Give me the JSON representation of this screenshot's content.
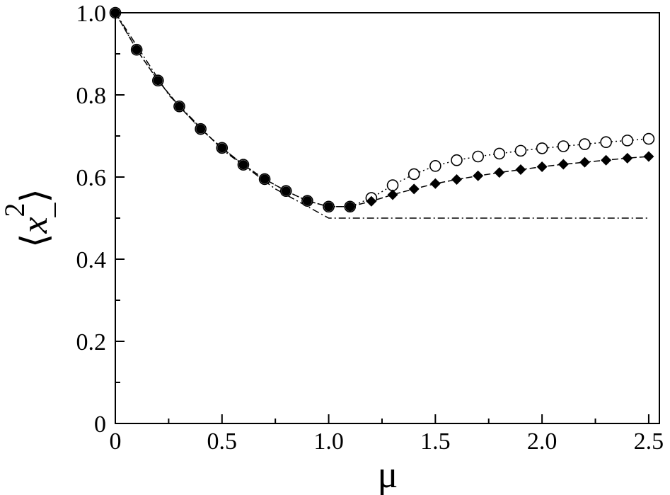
{
  "chart_data": {
    "type": "scatter",
    "xlabel": "μ",
    "ylabel": "⟨x_²⟩",
    "ylabel_parts": {
      "bracket_left": "⟨",
      "var": "x",
      "sub": "_",
      "sup": "2",
      "bracket_right": "⟩"
    },
    "xlim": [
      0,
      2.55
    ],
    "ylim": [
      0,
      1.0
    ],
    "x_ticks": [
      0,
      0.5,
      1.0,
      1.5,
      2.0,
      2.5
    ],
    "x_tick_labels": [
      "0",
      "0.5",
      "1.0",
      "1.5",
      "2.0",
      "2.5"
    ],
    "y_ticks": [
      0,
      0.2,
      0.4,
      0.6,
      0.8,
      1.0
    ],
    "y_tick_labels": [
      "0",
      "0.2",
      "0.4",
      "0.6",
      "0.8",
      "1.0"
    ],
    "grid": false,
    "legend": "none",
    "series": [
      {
        "marker": "open-circle",
        "line": "dotted",
        "x": [
          0,
          0.1,
          0.2,
          0.3,
          0.4,
          0.5,
          0.6,
          0.7,
          0.8,
          0.9,
          1.0,
          1.1,
          1.2,
          1.3,
          1.4,
          1.5,
          1.6,
          1.7,
          1.8,
          1.9,
          2.0,
          2.1,
          2.2,
          2.3,
          2.4,
          2.5
        ],
        "values": [
          1.0,
          0.91,
          0.835,
          0.772,
          0.717,
          0.671,
          0.63,
          0.595,
          0.566,
          0.542,
          0.528,
          0.528,
          0.549,
          0.58,
          0.607,
          0.627,
          0.641,
          0.65,
          0.657,
          0.664,
          0.67,
          0.675,
          0.68,
          0.685,
          0.689,
          0.693
        ]
      },
      {
        "marker": "filled-circle",
        "line": "dashed",
        "x": [
          0,
          0.1,
          0.2,
          0.3,
          0.4,
          0.5,
          0.6,
          0.7,
          0.8,
          0.9,
          1.0,
          1.1
        ],
        "values": [
          1.0,
          0.91,
          0.835,
          0.772,
          0.717,
          0.671,
          0.63,
          0.595,
          0.566,
          0.542,
          0.528,
          0.528
        ]
      },
      {
        "marker": "filled-diamond",
        "line": "dashed",
        "x": [
          1.1,
          1.2,
          1.3,
          1.4,
          1.5,
          1.6,
          1.7,
          1.8,
          1.9,
          2.0,
          2.1,
          2.2,
          2.3,
          2.4,
          2.5
        ],
        "values": [
          0.528,
          0.541,
          0.557,
          0.571,
          0.584,
          0.594,
          0.603,
          0.611,
          0.618,
          0.625,
          0.631,
          0.636,
          0.641,
          0.646,
          0.65
        ]
      },
      {
        "marker": "none",
        "line": "dash-dot",
        "x": [
          0,
          0.25,
          0.5,
          0.75,
          1.0,
          1.5,
          2.0,
          2.5
        ],
        "values": [
          1.0,
          0.8,
          0.667,
          0.571,
          0.5,
          0.5,
          0.5,
          0.5
        ]
      }
    ]
  }
}
